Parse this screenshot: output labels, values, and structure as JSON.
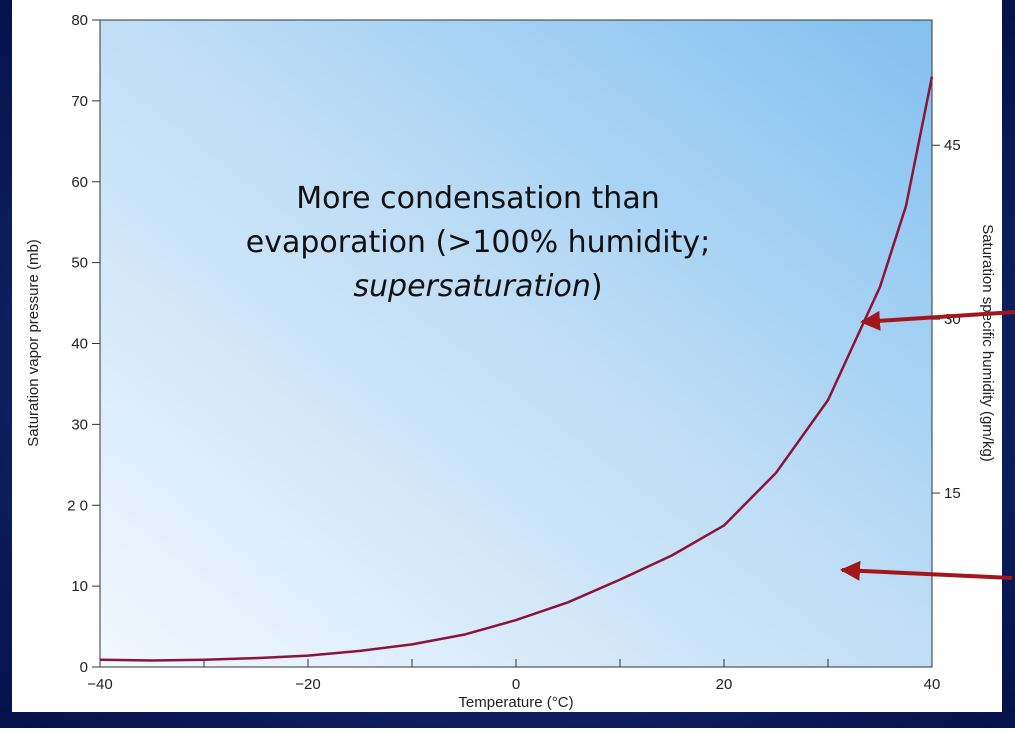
{
  "chart_data": {
    "type": "line",
    "xlabel": "Temperature (°C)",
    "ylabel": "Saturation vapor pressure (mb)",
    "y2label": "Saturation specific humidity (gm/kg)",
    "annotation": {
      "lines": [
        "More condensation than",
        "evaporation (>100% humidity;"
      ],
      "emphasis": "supersaturation",
      "closing": ")"
    },
    "x": [
      -40,
      -35,
      -30,
      -25,
      -20,
      -15,
      -10,
      -5,
      0,
      5,
      10,
      15,
      20,
      25,
      30,
      35,
      37.5,
      40
    ],
    "series": [
      {
        "name": "Saturation vapor pressure",
        "color": "#8b1538",
        "values": [
          0.9,
          0.8,
          0.9,
          1.1,
          1.4,
          2.0,
          2.8,
          4.0,
          5.8,
          8.0,
          10.8,
          13.8,
          17.5,
          24,
          33,
          47,
          57,
          73
        ]
      }
    ],
    "xlim": [
      -40,
      40
    ],
    "xticks": [
      {
        "value": -40,
        "label": "−40"
      },
      {
        "value": -20,
        "label": "−20"
      },
      0,
      20,
      40
    ],
    "xminor_ticks": [
      -30,
      -10,
      10,
      30
    ],
    "ylim": [
      0,
      80
    ],
    "yticks": [
      0,
      10,
      {
        "value": 20,
        "label": "2 0"
      },
      30,
      40,
      50,
      60,
      70,
      80
    ],
    "y2lim": [
      0,
      55.8
    ],
    "y2ticks": [
      15,
      30,
      45
    ]
  }
}
